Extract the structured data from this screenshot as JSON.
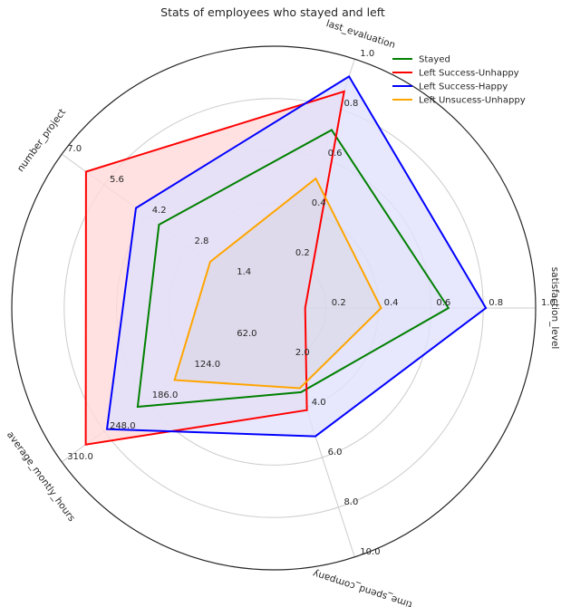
{
  "chart_data": {
    "type": "radar",
    "title": "Stats of employees who stayed and left",
    "axes": [
      {
        "name": "satisfaction_level",
        "max": 1.0,
        "ticks": [
          "0.2",
          "0.4",
          "0.6",
          "0.8",
          "1.0"
        ]
      },
      {
        "name": "last_evaluation",
        "max": 1.0,
        "ticks": [
          "0.2",
          "0.4",
          "0.6",
          "0.8",
          "1.0"
        ]
      },
      {
        "name": "number_project",
        "max": 7.0,
        "ticks": [
          "1.4",
          "2.8",
          "4.2",
          "5.6",
          "7.0"
        ]
      },
      {
        "name": "average_montly_hours",
        "max": 310.0,
        "ticks": [
          "62.0",
          "124.0",
          "186.0",
          "248.0",
          "310.0"
        ]
      },
      {
        "name": "time_spend_company",
        "max": 10.0,
        "ticks": [
          "2.0",
          "4.0",
          "6.0",
          "8.0",
          "10.0"
        ]
      }
    ],
    "series": [
      {
        "name": "Stayed",
        "color": "#008000",
        "fill": false,
        "values": [
          0.667,
          0.715,
          3.79,
          199.0,
          3.38
        ]
      },
      {
        "name": "Left Success-Unhappy",
        "color": "#ff0000",
        "fill": "#ffdada",
        "values": [
          0.12,
          0.87,
          6.2,
          275.0,
          4.1
        ]
      },
      {
        "name": "Left Success-Happy",
        "color": "#0000ff",
        "fill": "#e1e1fd",
        "values": [
          0.81,
          0.93,
          4.55,
          244.0,
          5.15
        ]
      },
      {
        "name": "Left Unsucess-Unhappy",
        "color": "#ffa500",
        "fill": false,
        "values": [
          0.41,
          0.52,
          2.1,
          145.0,
          3.22
        ]
      }
    ],
    "legend_position": "top-right",
    "grid": true
  }
}
